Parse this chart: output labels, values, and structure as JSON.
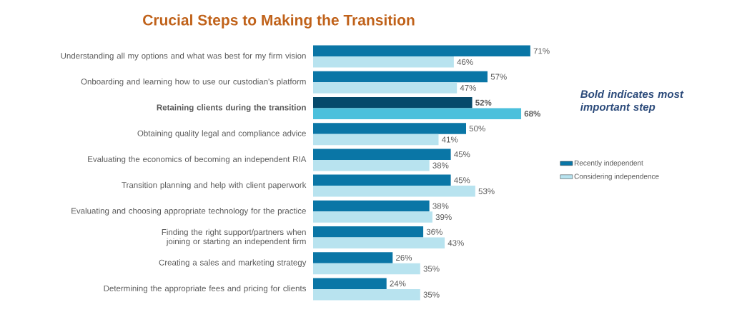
{
  "chart_data": {
    "type": "bar",
    "orientation": "horizontal",
    "title": "Crucial Steps to Making the Transition",
    "categories": [
      "Understanding all my options and what was best for my firm vision",
      "Onboarding and learning how to use our custodian's platform",
      "**Retaining clients during the transition**",
      "Obtaining quality legal and compliance advice",
      "Evaluating the economics of becoming an independent RIA",
      "Transition planning and help with client paperwork",
      "Evaluating and choosing appropriate technology for the practice",
      "Finding the right support/partners when joining or starting an independent firm",
      "Creating a sales and marketing strategy",
      "Determining the appropriate fees and pricing for clients"
    ],
    "series": [
      {
        "name": "Recently independent",
        "color": "#0a76a6",
        "colors": [
          "#0a76a6",
          "#0a76a6",
          "#064a6b",
          "#0a76a6",
          "#0a76a6",
          "#0a76a6",
          "#0a76a6",
          "#0a76a6",
          "#0a76a6",
          "#0a76a6"
        ],
        "values": [
          71,
          57,
          52,
          50,
          45,
          45,
          38,
          36,
          26,
          24
        ],
        "value_labels": [
          "71%",
          "57%",
          "**52%**",
          "50%",
          "45%",
          "45%",
          "38%",
          "36%",
          "26%",
          "24%"
        ]
      },
      {
        "name": "Considering independence",
        "color": "#b8e3ef",
        "colors": [
          "#b8e3ef",
          "#b8e3ef",
          "#4cc0dc",
          "#b8e3ef",
          "#b8e3ef",
          "#b8e3ef",
          "#b8e3ef",
          "#b8e3ef",
          "#b8e3ef",
          "#b8e3ef"
        ],
        "values": [
          46,
          47,
          68,
          41,
          38,
          53,
          39,
          43,
          35,
          35
        ],
        "value_labels": [
          "46%",
          "47%",
          "**68%**",
          "41%",
          "38%",
          "53%",
          "39%",
          "43%",
          "35%",
          "35%"
        ]
      }
    ],
    "annotations": [
      "Bold indicates most important step"
    ],
    "legend": "right"
  }
}
